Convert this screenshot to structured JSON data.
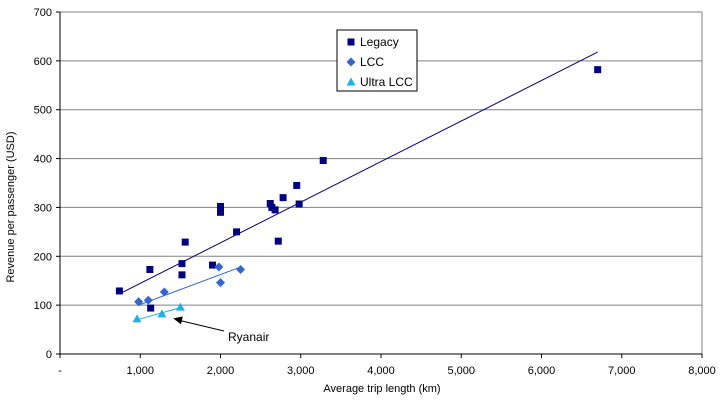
{
  "chart_data": {
    "type": "scatter",
    "xlabel": "Average trip length (km)",
    "ylabel": "Revenue per passenger (USD)",
    "xlim": [
      0,
      8000
    ],
    "ylim": [
      0,
      700
    ],
    "x_ticks": [
      0,
      1000,
      2000,
      3000,
      4000,
      5000,
      6000,
      7000,
      8000
    ],
    "x_tick_labels": [
      "-",
      "1,000",
      "2,000",
      "3,000",
      "4,000",
      "5,000",
      "6,000",
      "7,000",
      "8,000"
    ],
    "y_ticks": [
      0,
      100,
      200,
      300,
      400,
      500,
      600,
      700
    ],
    "y_tick_labels": [
      "0",
      "100",
      "200",
      "300",
      "400",
      "500",
      "600",
      "700"
    ],
    "grid": "horizontal",
    "legend_position": "top-center",
    "series": [
      {
        "name": "Legacy",
        "marker": "square",
        "color": "#000080",
        "points": [
          [
            740,
            129
          ],
          [
            1120,
            173
          ],
          [
            1130,
            94
          ],
          [
            1520,
            185
          ],
          [
            1520,
            162
          ],
          [
            1560,
            229
          ],
          [
            1900,
            182
          ],
          [
            2000,
            302
          ],
          [
            2000,
            290
          ],
          [
            2200,
            250
          ],
          [
            2620,
            308
          ],
          [
            2640,
            300
          ],
          [
            2680,
            295
          ],
          [
            2720,
            231
          ],
          [
            2780,
            320
          ],
          [
            2950,
            345
          ],
          [
            2980,
            307
          ],
          [
            3280,
            396
          ],
          [
            6700,
            582
          ]
        ],
        "trendline": [
          [
            740,
            123
          ],
          [
            6700,
            618
          ]
        ]
      },
      {
        "name": "LCC",
        "marker": "diamond",
        "color": "#3366CC",
        "points": [
          [
            980,
            107
          ],
          [
            1100,
            110
          ],
          [
            1300,
            127
          ],
          [
            1980,
            178
          ],
          [
            2000,
            146
          ],
          [
            2250,
            173
          ]
        ],
        "trendline": [
          [
            980,
            100
          ],
          [
            2250,
            178
          ]
        ]
      },
      {
        "name": "Ultra LCC",
        "marker": "triangle",
        "color": "#1EB0E6",
        "points": [
          [
            960,
            72
          ],
          [
            1270,
            82
          ],
          [
            1500,
            96
          ]
        ],
        "trendline": [
          [
            960,
            70
          ],
          [
            1500,
            95
          ]
        ]
      }
    ],
    "annotations": [
      {
        "text": "Ryanair",
        "target": [
          1360,
          75
        ]
      }
    ]
  }
}
